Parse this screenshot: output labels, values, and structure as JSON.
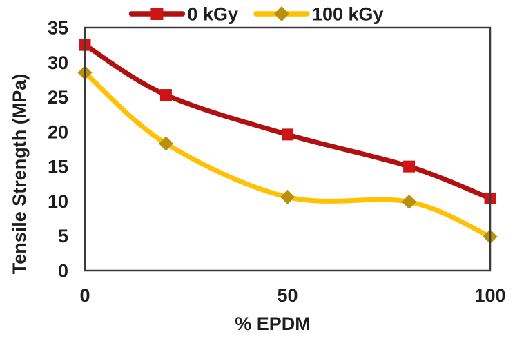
{
  "chart_data": {
    "type": "line",
    "title": "",
    "xlabel": "% EPDM",
    "ylabel": "Tensile Strength (MPa)",
    "x": [
      0,
      20,
      50,
      80,
      100
    ],
    "series": [
      {
        "name": "0 kGy",
        "values": [
          32.5,
          25.3,
          19.6,
          15.0,
          10.4
        ],
        "line_color": "#B01010",
        "marker_color": "#CE1414",
        "marker": "square"
      },
      {
        "name": "100 kGy",
        "values": [
          28.5,
          18.3,
          10.6,
          9.9,
          4.9
        ],
        "line_color": "#FFC103",
        "marker_color": "#B7910C",
        "marker": "diamond"
      }
    ],
    "xlim": [
      0,
      100
    ],
    "ylim": [
      0,
      35
    ],
    "x_ticks": [
      0,
      50,
      100
    ],
    "y_ticks": [
      0,
      5,
      10,
      15,
      20,
      25,
      30,
      35
    ],
    "grid": false,
    "smooth": true,
    "legend_position": "top-center",
    "axis_color": "#3B3B3B",
    "text_color": "#1E1E1E",
    "background_color": "#FFFFFF"
  }
}
